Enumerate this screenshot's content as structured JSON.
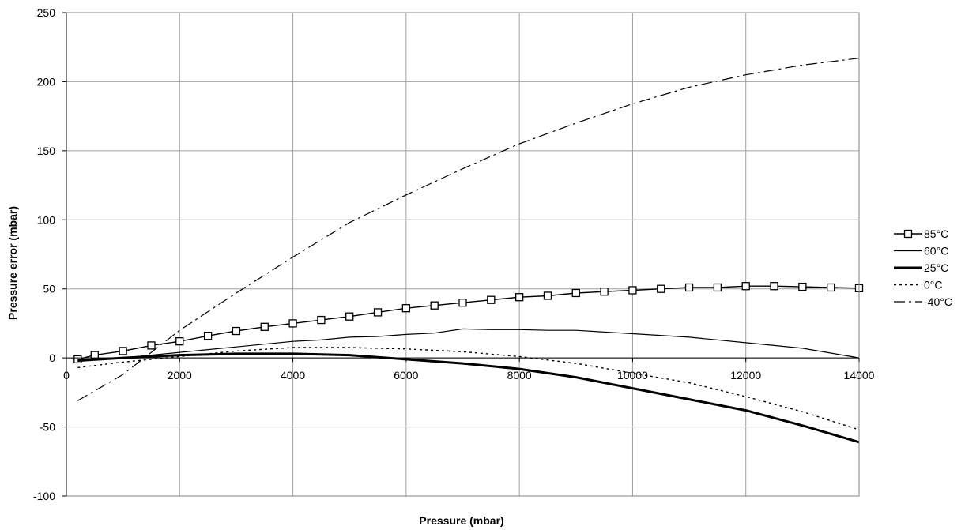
{
  "chart_data": {
    "type": "line",
    "title": "",
    "xlabel": "Pressure (mbar)",
    "ylabel": "Pressure error (mbar)",
    "xlim": [
      0,
      14000
    ],
    "ylim": [
      -100,
      250
    ],
    "xticks": [
      0,
      2000,
      4000,
      6000,
      8000,
      10000,
      12000,
      14000
    ],
    "yticks": [
      -100,
      -50,
      0,
      50,
      100,
      150,
      200,
      250
    ],
    "grid": true,
    "legend_position": "right",
    "series": [
      {
        "name": "85°C",
        "style": "line-square-markers",
        "color": "#000000",
        "x": [
          200,
          500,
          1000,
          1500,
          2000,
          2500,
          3000,
          3500,
          4000,
          4500,
          5000,
          5500,
          6000,
          6500,
          7000,
          7500,
          8000,
          8500,
          9000,
          9500,
          10000,
          10500,
          11000,
          11500,
          12000,
          12500,
          13000,
          13500,
          14000
        ],
        "y": [
          -1,
          2,
          5,
          9,
          12,
          16,
          19.5,
          22.5,
          25,
          27.5,
          30,
          33,
          36,
          38,
          40,
          42,
          44,
          45,
          47,
          48,
          49,
          50,
          51,
          51,
          52,
          52,
          51.5,
          51,
          50.5
        ]
      },
      {
        "name": "60°C",
        "style": "thin-solid",
        "color": "#000000",
        "x": [
          200,
          1000,
          2000,
          3000,
          4000,
          4500,
          5000,
          5500,
          6000,
          6500,
          7000,
          7500,
          8000,
          8500,
          9000,
          10000,
          11000,
          12000,
          13000,
          14000
        ],
        "y": [
          -2,
          0,
          4,
          8,
          12,
          13,
          15,
          15.5,
          17,
          18,
          21,
          20.5,
          20.5,
          20,
          20,
          17.5,
          15,
          11,
          7,
          0
        ]
      },
      {
        "name": "25°C",
        "style": "thick-solid",
        "color": "#000000",
        "x": [
          200,
          1000,
          2000,
          3000,
          4000,
          5000,
          6000,
          7000,
          8000,
          9000,
          10000,
          11000,
          12000,
          13000,
          14000
        ],
        "y": [
          -2,
          0,
          2,
          3,
          3,
          2,
          -1,
          -4,
          -8,
          -14,
          -22,
          -30,
          -38,
          -49,
          -61
        ]
      },
      {
        "name": "0°C",
        "style": "dotted",
        "color": "#000000",
        "x": [
          200,
          1000,
          2000,
          3000,
          4000,
          5000,
          6000,
          7000,
          8000,
          9000,
          10000,
          11000,
          12000,
          13000,
          14000
        ],
        "y": [
          -7,
          -3,
          1,
          5,
          7.5,
          7.5,
          6.5,
          4.5,
          1,
          -4,
          -11,
          -18,
          -28,
          -39,
          -52
        ]
      },
      {
        "name": "-40°C",
        "style": "dash-dot",
        "color": "#000000",
        "x": [
          200,
          1000,
          2000,
          3000,
          4000,
          5000,
          6000,
          7000,
          8000,
          9000,
          10000,
          11000,
          12000,
          13000,
          14000
        ],
        "y": [
          -31,
          -12,
          20,
          47,
          73,
          98,
          118,
          137,
          155,
          170,
          184,
          196,
          205,
          212,
          217
        ]
      }
    ]
  }
}
